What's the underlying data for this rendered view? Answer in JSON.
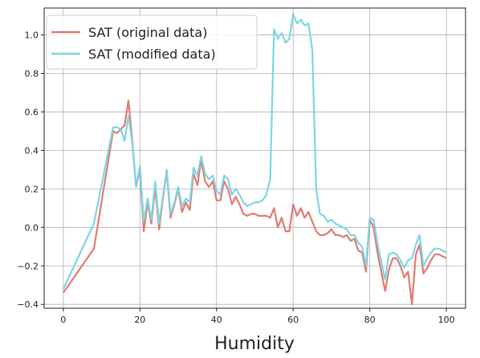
{
  "chart_data": {
    "type": "line",
    "title": "",
    "xlabel": "Humidity",
    "ylabel": "",
    "xlim": [
      -5,
      105
    ],
    "ylim": [
      -0.42,
      1.14
    ],
    "xticks": [
      0,
      20,
      40,
      60,
      80,
      100
    ],
    "yticks": [
      -0.4,
      -0.2,
      0.0,
      0.2,
      0.4,
      0.6,
      0.8,
      1.0
    ],
    "xtick_labels": [
      "0",
      "20",
      "40",
      "60",
      "80",
      "100"
    ],
    "ytick_labels": [
      "−0.4",
      "−0.2",
      "0.0",
      "0.2",
      "0.4",
      "0.6",
      "0.8",
      "1.0"
    ],
    "grid": true,
    "legend_position": "top-left",
    "series": [
      {
        "name": "SAT (original data)",
        "color": "#e07b73",
        "points": [
          [
            0,
            -0.34
          ],
          [
            8,
            -0.11
          ],
          [
            13,
            0.5
          ],
          [
            14,
            0.49
          ],
          [
            15,
            0.51
          ],
          [
            16,
            0.53
          ],
          [
            17,
            0.66
          ],
          [
            18,
            0.45
          ],
          [
            19,
            0.21
          ],
          [
            20,
            0.3
          ],
          [
            21,
            -0.02
          ],
          [
            22,
            0.13
          ],
          [
            23,
            0.02
          ],
          [
            24,
            0.21
          ],
          [
            25,
            -0.01
          ],
          [
            26,
            0.15
          ],
          [
            27,
            0.29
          ],
          [
            28,
            0.05
          ],
          [
            29,
            0.12
          ],
          [
            30,
            0.2
          ],
          [
            31,
            0.08
          ],
          [
            32,
            0.13
          ],
          [
            33,
            0.09
          ],
          [
            34,
            0.28
          ],
          [
            35,
            0.22
          ],
          [
            36,
            0.35
          ],
          [
            37,
            0.24
          ],
          [
            38,
            0.21
          ],
          [
            39,
            0.24
          ],
          [
            40,
            0.14
          ],
          [
            41,
            0.14
          ],
          [
            42,
            0.24
          ],
          [
            43,
            0.2
          ],
          [
            44,
            0.12
          ],
          [
            45,
            0.16
          ],
          [
            46,
            0.12
          ],
          [
            47,
            0.07
          ],
          [
            48,
            0.06
          ],
          [
            49,
            0.07
          ],
          [
            50,
            0.07
          ],
          [
            51,
            0.06
          ],
          [
            52,
            0.06
          ],
          [
            53,
            0.06
          ],
          [
            54,
            0.05
          ],
          [
            55,
            0.1
          ],
          [
            56,
            0.0
          ],
          [
            57,
            0.05
          ],
          [
            58,
            -0.02
          ],
          [
            59,
            -0.02
          ],
          [
            60,
            0.12
          ],
          [
            61,
            0.06
          ],
          [
            62,
            0.1
          ],
          [
            63,
            0.05
          ],
          [
            64,
            0.08
          ],
          [
            65,
            0.03
          ],
          [
            66,
            -0.02
          ],
          [
            67,
            -0.04
          ],
          [
            68,
            -0.04
          ],
          [
            69,
            -0.03
          ],
          [
            70,
            -0.01
          ],
          [
            71,
            -0.04
          ],
          [
            72,
            -0.04
          ],
          [
            73,
            -0.05
          ],
          [
            74,
            -0.04
          ],
          [
            75,
            -0.07
          ],
          [
            76,
            -0.06
          ],
          [
            77,
            -0.12
          ],
          [
            78,
            -0.13
          ],
          [
            79,
            -0.23
          ],
          [
            80,
            0.04
          ],
          [
            81,
            0.0
          ],
          [
            82,
            -0.13
          ],
          [
            83,
            -0.23
          ],
          [
            84,
            -0.33
          ],
          [
            85,
            -0.22
          ],
          [
            86,
            -0.16
          ],
          [
            87,
            -0.16
          ],
          [
            88,
            -0.2
          ],
          [
            89,
            -0.26
          ],
          [
            90,
            -0.23
          ],
          [
            91,
            -0.4
          ],
          [
            92,
            -0.14
          ],
          [
            93,
            -0.09
          ],
          [
            94,
            -0.24
          ],
          [
            95,
            -0.21
          ],
          [
            96,
            -0.17
          ],
          [
            97,
            -0.14
          ],
          [
            98,
            -0.14
          ],
          [
            99,
            -0.15
          ],
          [
            100,
            -0.16
          ]
        ]
      },
      {
        "name": "SAT (modified data)",
        "color": "#7fd5e0",
        "points": [
          [
            0,
            -0.32
          ],
          [
            8,
            0.02
          ],
          [
            13,
            0.52
          ],
          [
            14,
            0.52
          ],
          [
            15,
            0.51
          ],
          [
            16,
            0.45
          ],
          [
            17,
            0.58
          ],
          [
            18,
            0.44
          ],
          [
            19,
            0.21
          ],
          [
            20,
            0.32
          ],
          [
            21,
            0.03
          ],
          [
            22,
            0.15
          ],
          [
            23,
            0.04
          ],
          [
            24,
            0.24
          ],
          [
            25,
            0.02
          ],
          [
            26,
            0.16
          ],
          [
            27,
            0.3
          ],
          [
            28,
            0.07
          ],
          [
            29,
            0.13
          ],
          [
            30,
            0.21
          ],
          [
            31,
            0.11
          ],
          [
            32,
            0.15
          ],
          [
            33,
            0.13
          ],
          [
            34,
            0.31
          ],
          [
            35,
            0.27
          ],
          [
            36,
            0.37
          ],
          [
            37,
            0.28
          ],
          [
            38,
            0.25
          ],
          [
            39,
            0.27
          ],
          [
            40,
            0.19
          ],
          [
            41,
            0.17
          ],
          [
            42,
            0.27
          ],
          [
            43,
            0.25
          ],
          [
            44,
            0.17
          ],
          [
            45,
            0.2
          ],
          [
            46,
            0.17
          ],
          [
            47,
            0.13
          ],
          [
            48,
            0.11
          ],
          [
            49,
            0.12
          ],
          [
            50,
            0.13
          ],
          [
            51,
            0.13
          ],
          [
            52,
            0.14
          ],
          [
            53,
            0.17
          ],
          [
            54,
            0.25
          ],
          [
            55,
            1.03
          ],
          [
            56,
            0.98
          ],
          [
            57,
            1.01
          ],
          [
            58,
            0.96
          ],
          [
            59,
            0.98
          ],
          [
            60,
            1.11
          ],
          [
            61,
            1.06
          ],
          [
            62,
            1.08
          ],
          [
            63,
            1.05
          ],
          [
            64,
            1.06
          ],
          [
            65,
            0.92
          ],
          [
            66,
            0.2
          ],
          [
            67,
            0.07
          ],
          [
            68,
            0.06
          ],
          [
            69,
            0.03
          ],
          [
            70,
            0.04
          ],
          [
            71,
            0.02
          ],
          [
            72,
            0.01
          ],
          [
            73,
            0.0
          ],
          [
            74,
            -0.01
          ],
          [
            75,
            -0.04
          ],
          [
            76,
            -0.04
          ],
          [
            77,
            -0.08
          ],
          [
            78,
            -0.1
          ],
          [
            79,
            -0.2
          ],
          [
            80,
            0.05
          ],
          [
            81,
            0.04
          ],
          [
            82,
            -0.08
          ],
          [
            83,
            -0.18
          ],
          [
            84,
            -0.27
          ],
          [
            85,
            -0.14
          ],
          [
            86,
            -0.13
          ],
          [
            87,
            -0.14
          ],
          [
            88,
            -0.17
          ],
          [
            89,
            -0.21
          ],
          [
            90,
            -0.17
          ],
          [
            91,
            -0.16
          ],
          [
            92,
            -0.09
          ],
          [
            93,
            -0.04
          ],
          [
            94,
            -0.2
          ],
          [
            95,
            -0.16
          ],
          [
            96,
            -0.13
          ],
          [
            97,
            -0.11
          ],
          [
            98,
            -0.11
          ],
          [
            99,
            -0.12
          ],
          [
            100,
            -0.13
          ]
        ]
      }
    ]
  }
}
